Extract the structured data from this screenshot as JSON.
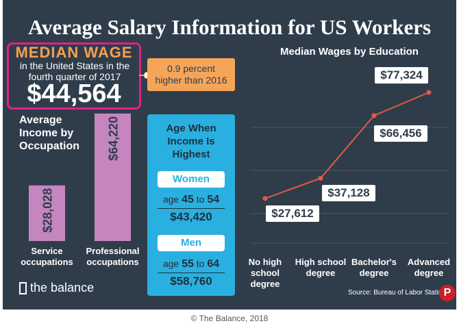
{
  "title": "Average Salary Information for US Workers",
  "median_wage": {
    "heading": "MEDIAN WAGE",
    "description": "in the United States in the fourth quarter of 2017",
    "value": "$44,564",
    "note": "0.9 percent higher than 2016"
  },
  "occupation_heading": "Average Income by Occupation",
  "age_box": {
    "title": "Age When Income Is Highest",
    "groups": [
      {
        "label": "Women",
        "age_prefix": "age",
        "age_from": "45",
        "age_sep": "to",
        "age_to": "54",
        "income": "$43,420"
      },
      {
        "label": "Men",
        "age_prefix": "age",
        "age_from": "55",
        "age_sep": "to",
        "age_to": "64",
        "income": "$58,760"
      }
    ]
  },
  "logo": "the balance",
  "source": "Source: Bureau of Labor Statis",
  "copyright": "© The Balance, 2018",
  "chart_data": [
    {
      "type": "bar",
      "categories": [
        "Service occupations",
        "Professional occupations"
      ],
      "values": [
        28028,
        64220
      ],
      "value_labels": [
        "$28,028",
        "$64,220"
      ],
      "color": "#c586c0"
    },
    {
      "type": "line",
      "title": "Median Wages by Education",
      "categories": [
        "No high school degree",
        "High school degree",
        "Bachelor's degree",
        "Advanced degree"
      ],
      "values": [
        27612,
        37128,
        66456,
        77324
      ],
      "value_labels": [
        "$27,612",
        "$37,128",
        "$66,456",
        "$77,324"
      ],
      "color": "#e05a45"
    }
  ]
}
